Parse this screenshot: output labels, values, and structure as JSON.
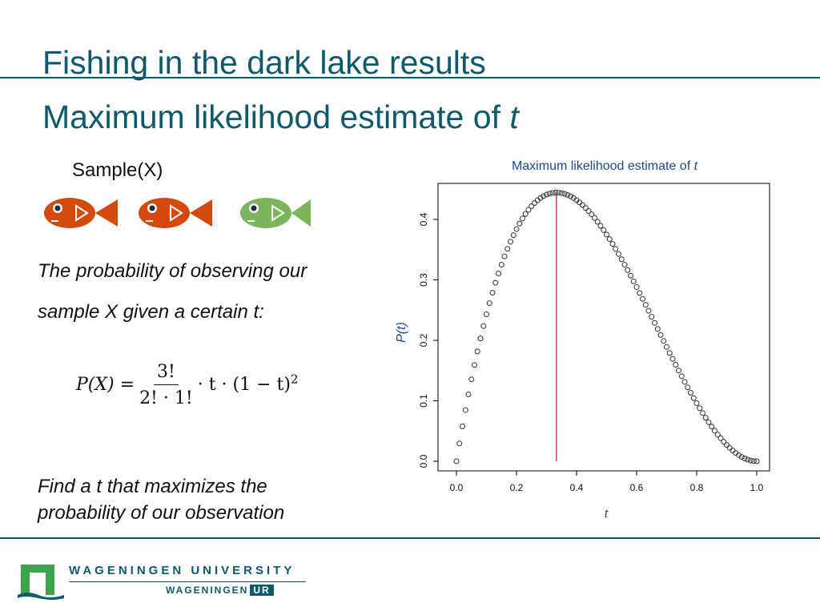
{
  "header": {
    "title": "Fishing in the dark lake results",
    "subtitle_prefix": "Maximum likelihood estimate of ",
    "subtitle_var": "t"
  },
  "sample": {
    "label": "Sample(X)",
    "fish_colors": [
      "#d44a0e",
      "#d44a0e",
      "#7ab55c"
    ]
  },
  "text": {
    "prob_line1": "The probability of observing our",
    "prob_line2": "sample X given a certain t:",
    "find_line1": "Find a t that maximizes the",
    "find_line2": "probability of our observation"
  },
  "formula": {
    "lhs": "P(X) =",
    "numerator": "3!",
    "denominator": "2! · 1!",
    "rhs": "· t · (1 − t)",
    "exponent": "2"
  },
  "chart_data": {
    "type": "scatter",
    "title_prefix": "Maximum likelihood estimate of ",
    "title_var": "t",
    "xlabel": "t",
    "ylabel": "P(t)",
    "xlim": [
      0,
      1
    ],
    "ylim": [
      0,
      0.45
    ],
    "xticks": [
      "0.0",
      "0.2",
      "0.4",
      "0.6",
      "0.8",
      "1.0"
    ],
    "yticks": [
      "0.0",
      "0.1",
      "0.2",
      "0.3",
      "0.4"
    ],
    "function": "3*t*(1-t)^2",
    "x_step": 0.01,
    "mle_line_x": 0.333,
    "mle_line_color": "#cc2222",
    "point_color": "#333333"
  },
  "footer": {
    "university": "WAGENINGEN UNIVERSITY",
    "ur_prefix": "WAGENINGEN",
    "ur_suffix": "UR",
    "brand_color": "#0c5a6b",
    "logo_color": "#3aa54a"
  }
}
